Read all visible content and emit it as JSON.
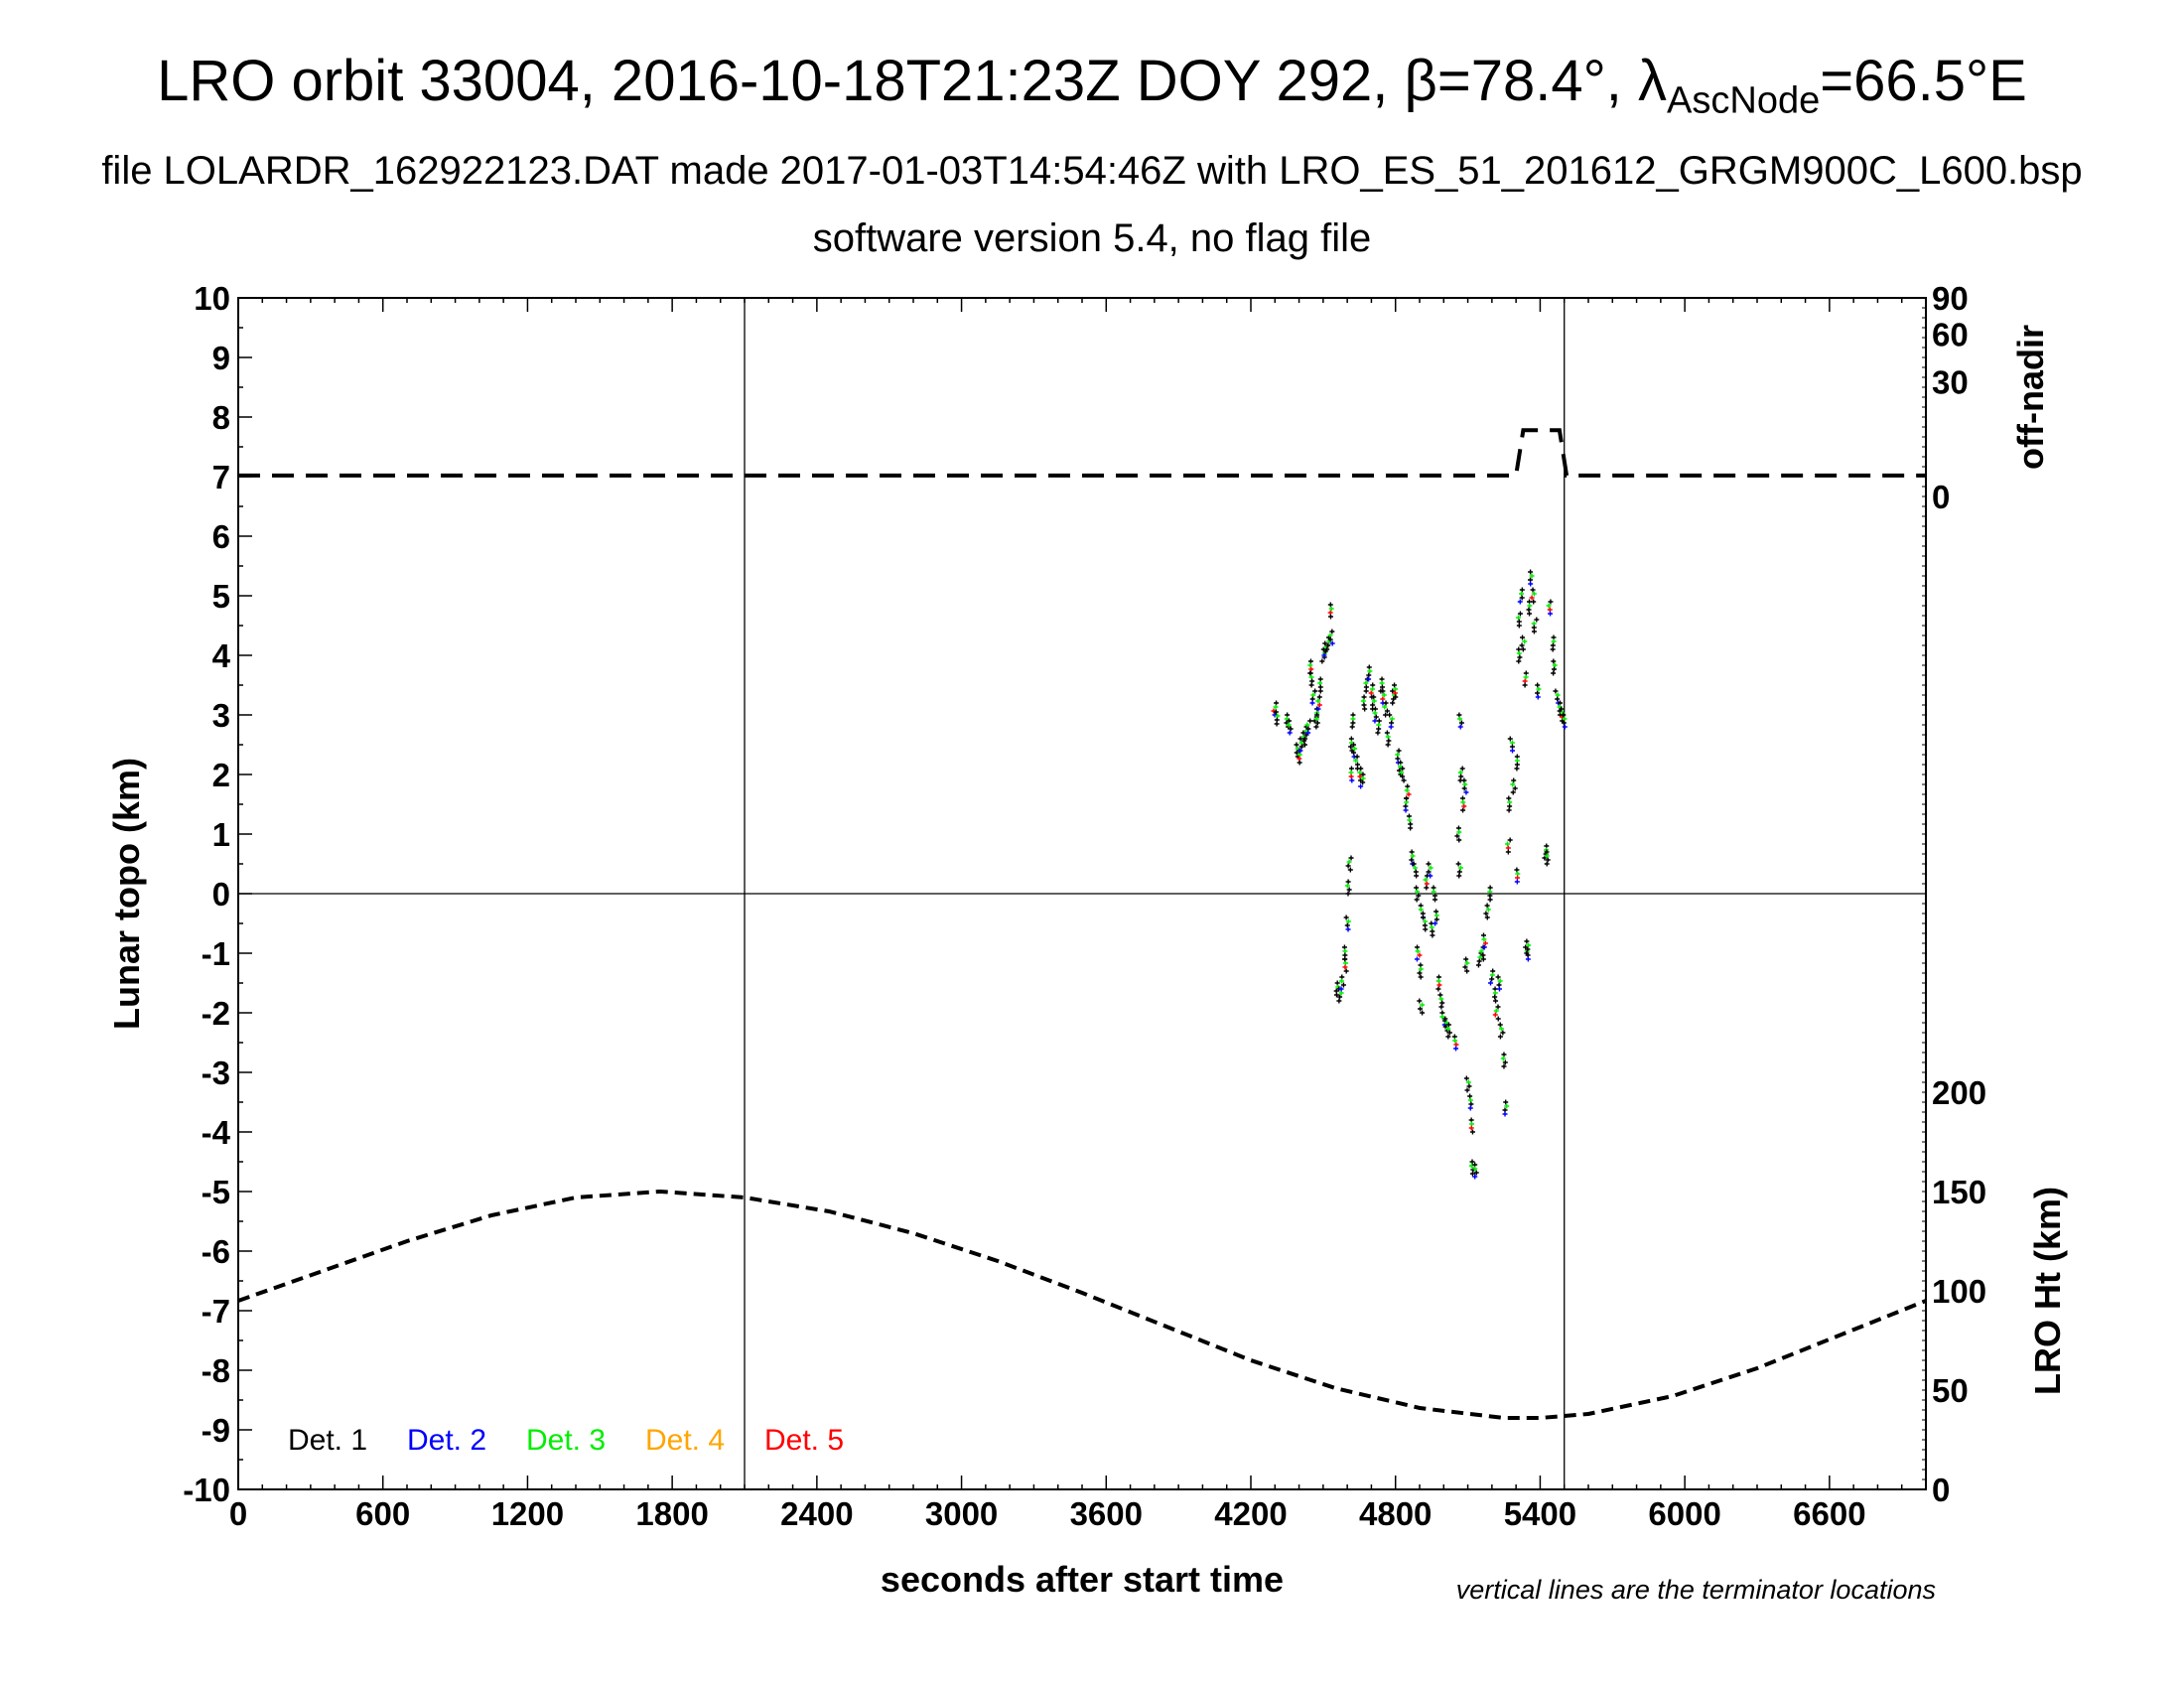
{
  "header": {
    "title_prefix": "LRO orbit 33004, 2016-10-18T21:23Z DOY 292, β=78.4°, λ",
    "title_sub": "AscNode",
    "title_suffix": "=66.5°E",
    "line2": "file LOLARDR_162922123.DAT made 2017-01-03T14:54:46Z with LRO_ES_51_201612_GRGM900C_L600.bsp",
    "line3": "software version 5.4, no flag file"
  },
  "chart_data": {
    "type": "scatter",
    "xlabel": "seconds after start time",
    "ylabel_left": "Lunar topo (km)",
    "ylabel_right_top": "off-nadir",
    "ylabel_right_bottom": "LRO Ht (km)",
    "xlim": [
      0,
      7000
    ],
    "ylim": [
      -10,
      10
    ],
    "x_ticks": [
      0,
      600,
      1200,
      1800,
      2400,
      3000,
      3600,
      4200,
      4800,
      5400,
      6000,
      6600
    ],
    "y_ticks": [
      10,
      9,
      8,
      7,
      6,
      5,
      4,
      3,
      2,
      1,
      0,
      -1,
      -2,
      -3,
      -4,
      -5,
      -6,
      -7,
      -8,
      -9,
      -10
    ],
    "right_top_ticks": [
      0,
      30,
      60,
      90
    ],
    "right_bottom_ticks": [
      0,
      50,
      100,
      150,
      200
    ],
    "terminator_x": [
      2100,
      5500
    ],
    "note": "vertical lines are the terminator locations",
    "colors": {
      "det1": "#000000",
      "det2": "#0000ff",
      "det3": "#00ee00",
      "det4": "#ffa500",
      "det5": "#ff0000"
    },
    "legend": [
      "Det. 1",
      "Det. 2",
      "Det. 3",
      "Det. 4",
      "Det. 5"
    ],
    "off_nadir": {
      "x": [
        0,
        5300,
        5330,
        5480,
        5510,
        7000
      ],
      "deg": [
        1,
        1,
        10,
        10,
        1,
        1
      ]
    },
    "altitude": {
      "x": [
        0,
        350,
        700,
        1050,
        1400,
        1750,
        2100,
        2450,
        2800,
        3150,
        3500,
        3850,
        4200,
        4550,
        4900,
        5250,
        5400,
        5600,
        5950,
        6300,
        6650,
        7000
      ],
      "km": [
        95,
        110,
        125,
        138,
        147,
        150,
        147,
        140,
        129,
        115,
        99,
        82,
        65,
        51,
        41,
        36,
        36,
        38,
        47,
        61,
        78,
        95
      ]
    },
    "topo_points": [
      [
        4300,
        3.1
      ],
      [
        4310,
        2.95
      ],
      [
        4350,
        2.9
      ],
      [
        4360,
        2.8
      ],
      [
        4390,
        2.4
      ],
      [
        4400,
        2.3
      ],
      [
        4410,
        2.5
      ],
      [
        4420,
        2.6
      ],
      [
        4430,
        2.7
      ],
      [
        4440,
        2.8
      ],
      [
        4445,
        3.8
      ],
      [
        4450,
        3.6
      ],
      [
        4460,
        3.3
      ],
      [
        4470,
        3.0
      ],
      [
        4475,
        2.9
      ],
      [
        4480,
        3.2
      ],
      [
        4490,
        3.5
      ],
      [
        4500,
        4.0
      ],
      [
        4510,
        4.1
      ],
      [
        4520,
        4.2
      ],
      [
        4530,
        4.75
      ],
      [
        4535,
        4.3
      ],
      [
        4560,
        -1.6
      ],
      [
        4570,
        -1.7
      ],
      [
        4580,
        -1.5
      ],
      [
        4590,
        -1.2
      ],
      [
        4595,
        -1.0
      ],
      [
        4600,
        -0.5
      ],
      [
        4605,
        0.1
      ],
      [
        4610,
        0.5
      ],
      [
        4615,
        2.0
      ],
      [
        4620,
        2.5
      ],
      [
        4625,
        2.9
      ],
      [
        4630,
        2.4
      ],
      [
        4640,
        2.2
      ],
      [
        4650,
        2.0
      ],
      [
        4660,
        1.9
      ],
      [
        4670,
        3.2
      ],
      [
        4680,
        3.5
      ],
      [
        4690,
        3.7
      ],
      [
        4700,
        3.4
      ],
      [
        4710,
        3.2
      ],
      [
        4720,
        3.0
      ],
      [
        4730,
        2.8
      ],
      [
        4740,
        3.5
      ],
      [
        4750,
        3.3
      ],
      [
        4760,
        3.1
      ],
      [
        4770,
        2.6
      ],
      [
        4780,
        2.9
      ],
      [
        4790,
        3.3
      ],
      [
        4800,
        3.4
      ],
      [
        4810,
        2.3
      ],
      [
        4820,
        2.1
      ],
      [
        4830,
        2.0
      ],
      [
        4840,
        1.5
      ],
      [
        4850,
        1.7
      ],
      [
        4860,
        1.2
      ],
      [
        4870,
        0.6
      ],
      [
        4880,
        0.4
      ],
      [
        4890,
        0.0
      ],
      [
        4895,
        -1.0
      ],
      [
        4900,
        -1.3
      ],
      [
        4905,
        -1.9
      ],
      [
        4910,
        -0.3
      ],
      [
        4920,
        -0.5
      ],
      [
        4930,
        0.2
      ],
      [
        4940,
        0.4
      ],
      [
        4950,
        -0.6
      ],
      [
        4960,
        0.0
      ],
      [
        4970,
        -0.4
      ],
      [
        4980,
        -1.5
      ],
      [
        4990,
        -1.8
      ],
      [
        5000,
        -2.1
      ],
      [
        5010,
        -2.2
      ],
      [
        5020,
        -2.3
      ],
      [
        5050,
        -2.5
      ],
      [
        5060,
        1.0
      ],
      [
        5065,
        0.4
      ],
      [
        5070,
        2.9
      ],
      [
        5075,
        2.0
      ],
      [
        5080,
        1.5
      ],
      [
        5090,
        1.8
      ],
      [
        5095,
        -1.2
      ],
      [
        5100,
        -3.2
      ],
      [
        5110,
        -3.5
      ],
      [
        5115,
        -3.9
      ],
      [
        5120,
        -4.6
      ],
      [
        5130,
        -4.65
      ],
      [
        5150,
        -1.1
      ],
      [
        5160,
        -1.0
      ],
      [
        5170,
        -0.8
      ],
      [
        5180,
        -0.3
      ],
      [
        5190,
        0.0
      ],
      [
        5200,
        -1.4
      ],
      [
        5210,
        -1.7
      ],
      [
        5220,
        -2.0
      ],
      [
        5230,
        -1.5
      ],
      [
        5240,
        -2.3
      ],
      [
        5250,
        -2.8
      ],
      [
        5260,
        -3.6
      ],
      [
        5270,
        0.8
      ],
      [
        5275,
        1.5
      ],
      [
        5280,
        2.5
      ],
      [
        5290,
        1.8
      ],
      [
        5300,
        2.2
      ],
      [
        5305,
        0.3
      ],
      [
        5310,
        4.0
      ],
      [
        5315,
        4.6
      ],
      [
        5320,
        5.0
      ],
      [
        5330,
        4.2
      ],
      [
        5340,
        3.6
      ],
      [
        5345,
        -1.0
      ],
      [
        5350,
        -0.9
      ],
      [
        5355,
        4.8
      ],
      [
        5360,
        5.3
      ],
      [
        5370,
        5.0
      ],
      [
        5380,
        4.5
      ],
      [
        5390,
        3.4
      ],
      [
        5420,
        0.7
      ],
      [
        5430,
        0.6
      ],
      [
        5440,
        4.8
      ],
      [
        5450,
        4.2
      ],
      [
        5460,
        3.8
      ],
      [
        5470,
        3.3
      ],
      [
        5480,
        3.1
      ],
      [
        5490,
        3.0
      ],
      [
        5500,
        2.9
      ]
    ]
  }
}
